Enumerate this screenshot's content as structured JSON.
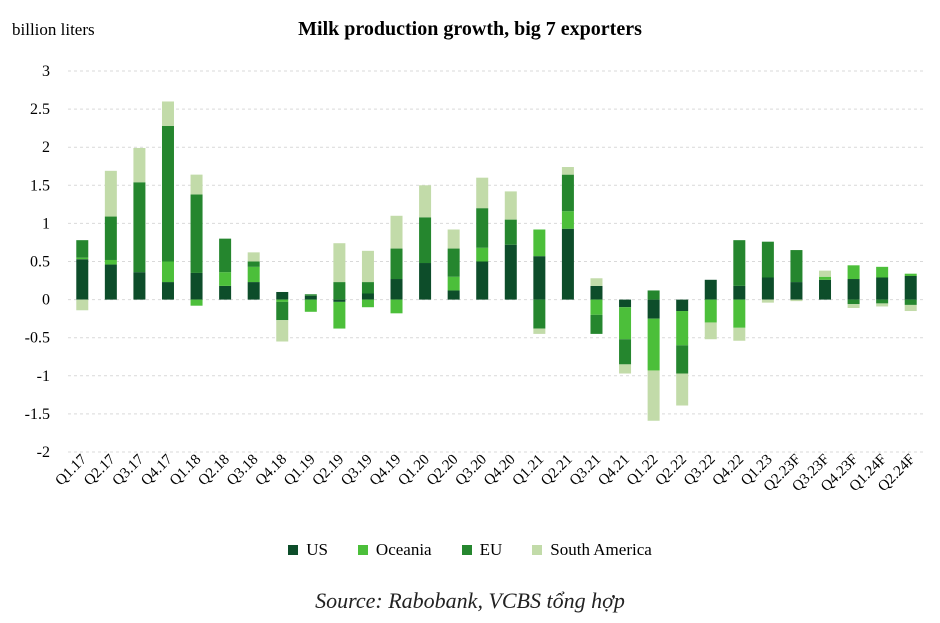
{
  "chart_data": {
    "type": "bar",
    "stacked": true,
    "title": "Milk production growth, big 7 exporters",
    "ylabel": "billion liters",
    "xlabel": "",
    "ylim": [
      -2,
      3
    ],
    "yticks": [
      3,
      2.5,
      2,
      1.5,
      1,
      0.5,
      0,
      -0.5,
      -1,
      -1.5,
      -2
    ],
    "ytick_labels": [
      "3",
      "2.5",
      "2",
      "1.5",
      "1",
      "0.5",
      "0",
      "-0.5",
      "-1",
      "-1.5",
      "-2"
    ],
    "categories": [
      "Q1.17",
      "Q2.17",
      "Q3.17",
      "Q4.17",
      "Q1.18",
      "Q2.18",
      "Q3.18",
      "Q4.18",
      "Q1.19",
      "Q2.19",
      "Q3.19",
      "Q4.19",
      "Q1.20",
      "Q2.20",
      "Q3.20",
      "Q4.20",
      "Q1.21",
      "Q2.21",
      "Q3.21",
      "Q4.21",
      "Q1.22",
      "Q2.22",
      "Q3.22",
      "Q4.22",
      "Q1.23",
      "Q2.23F",
      "Q3.23F",
      "Q4.23F",
      "Q1.24F",
      "Q2.24F"
    ],
    "series": [
      {
        "name": "US",
        "color": "#0d4d2a",
        "values": [
          0.53,
          0.46,
          0.36,
          0.23,
          0.35,
          0.18,
          0.23,
          0.1,
          0.05,
          -0.03,
          0.08,
          0.27,
          0.48,
          0.12,
          0.5,
          0.72,
          0.57,
          0.93,
          0.18,
          -0.1,
          -0.25,
          -0.15,
          0.26,
          0.18,
          0.29,
          0.23,
          0.26,
          0.27,
          0.29,
          0.31
        ]
      },
      {
        "name": "Oceania",
        "color": "#4cbf3a",
        "values": [
          0.02,
          0.06,
          0.0,
          0.27,
          -0.08,
          0.18,
          0.2,
          -0.03,
          -0.16,
          -0.35,
          -0.1,
          -0.18,
          0.0,
          0.18,
          0.18,
          0.0,
          0.35,
          0.23,
          -0.2,
          -0.42,
          -0.68,
          -0.45,
          -0.3,
          -0.37,
          0.0,
          0.0,
          0.04,
          0.18,
          0.14,
          0.03
        ]
      },
      {
        "name": "EU",
        "color": "#25862e",
        "values": [
          0.23,
          0.57,
          1.18,
          1.78,
          1.03,
          0.44,
          0.07,
          -0.24,
          0.02,
          0.23,
          0.15,
          0.4,
          0.6,
          0.37,
          0.52,
          0.33,
          -0.38,
          0.48,
          -0.25,
          -0.33,
          0.12,
          -0.37,
          0.0,
          0.6,
          0.47,
          0.42,
          0.0,
          -0.06,
          -0.05,
          -0.07
        ]
      },
      {
        "name": "South America",
        "color": "#c2dba9",
        "values": [
          -0.14,
          0.6,
          0.45,
          0.32,
          0.26,
          0.0,
          0.12,
          -0.28,
          0.0,
          0.51,
          0.41,
          0.43,
          0.42,
          0.25,
          0.4,
          0.37,
          -0.07,
          0.1,
          0.1,
          -0.12,
          -0.66,
          -0.42,
          -0.22,
          -0.17,
          -0.04,
          -0.02,
          0.08,
          -0.05,
          -0.04,
          -0.08
        ]
      }
    ]
  },
  "legend": {
    "items": [
      {
        "label": "US",
        "color": "#0d4d2a"
      },
      {
        "label": "Oceania",
        "color": "#4cbf3a"
      },
      {
        "label": "EU",
        "color": "#25862e"
      },
      {
        "label": "South America",
        "color": "#c2dba9"
      }
    ]
  },
  "source": "Source: Rabobank, VCBS tổng hợp"
}
